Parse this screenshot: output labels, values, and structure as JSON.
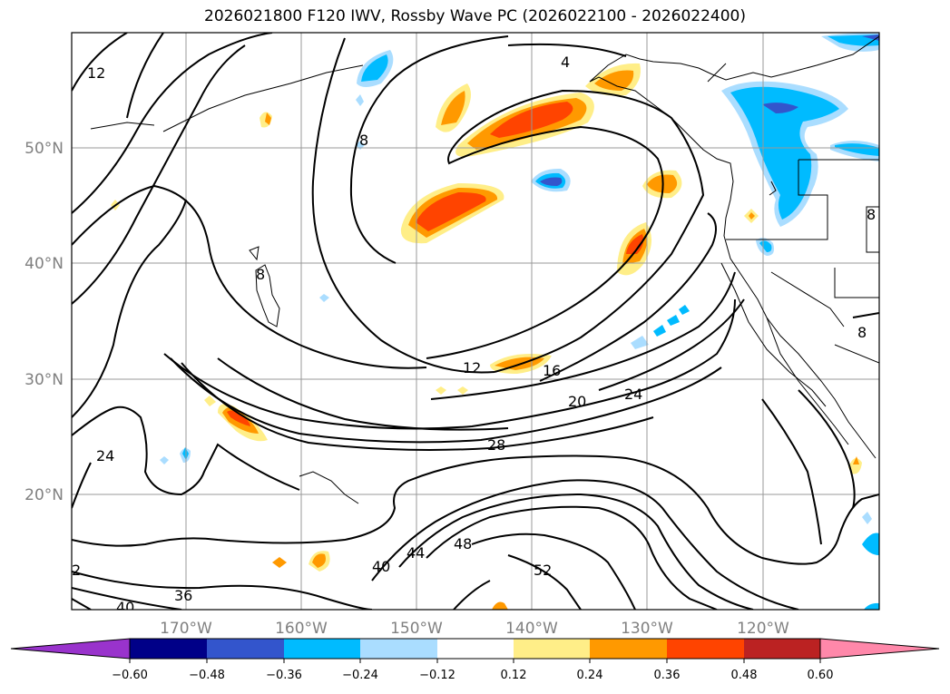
{
  "title": "2026021800 F120 IWV, Rossby Wave PC (2026022100 - 2026022400)",
  "map": {
    "lon_labels": [
      "170°W",
      "160°W",
      "150°W",
      "140°W",
      "130°W",
      "120°W"
    ],
    "lat_labels": [
      "50°N",
      "40°N",
      "30°N",
      "20°N"
    ],
    "contour_labels": [
      "12",
      "4",
      "8",
      "8",
      "12",
      "16",
      "20",
      "24",
      "28",
      "24",
      "36",
      "40",
      "44",
      "48",
      "52",
      "40",
      "2",
      "8",
      "8"
    ]
  },
  "colorbar": {
    "ticks": [
      "−0.60",
      "−0.48",
      "−0.36",
      "−0.24",
      "−0.12",
      "0.12",
      "0.24",
      "0.36",
      "0.48",
      "0.60"
    ],
    "colors": [
      "#9933cc",
      "#000088",
      "#3355cc",
      "#00bbff",
      "#aaddff",
      "#ffffff",
      "#ffee88",
      "#ff9900",
      "#ff4400",
      "#bb2222",
      "#ff88aa"
    ]
  }
}
